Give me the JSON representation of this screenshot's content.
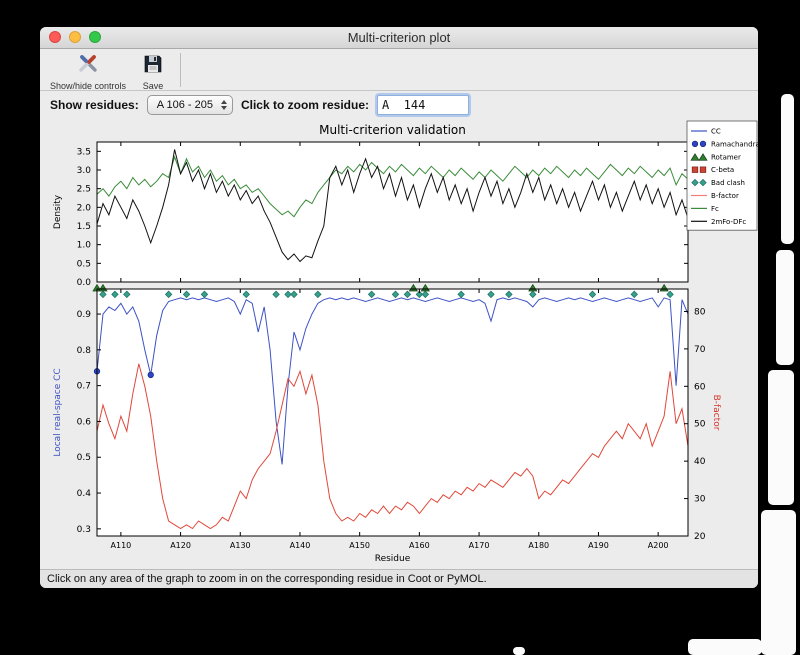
{
  "window": {
    "title": "Multi-criterion plot"
  },
  "toolbar": {
    "items": [
      {
        "label": "Show/hide controls",
        "icon": "tools-icon"
      },
      {
        "label": "Save",
        "icon": "save-icon"
      }
    ]
  },
  "controls": {
    "show_residues_label": "Show residues:",
    "show_residues_value": "A 106 - 205",
    "zoom_label": "Click to zoom residue:",
    "zoom_value": "A  144"
  },
  "status": "Click on any area of the graph to zoom in on the corresponding residue in Coot or PyMOL.",
  "chart_data": {
    "type": "line",
    "title": "Multi-criterion validation",
    "xlabel": "Residue",
    "x_start": 106,
    "x_end": 205,
    "x_ticks": [
      "A110",
      "A120",
      "A130",
      "A140",
      "A150",
      "A160",
      "A170",
      "A180",
      "A190",
      "A200"
    ],
    "x_tick_values": [
      110,
      120,
      130,
      140,
      150,
      160,
      170,
      180,
      190,
      200
    ],
    "top_plot": {
      "ylabel": "Density",
      "ylim": [
        0.0,
        3.75
      ],
      "yticks": [
        0.0,
        0.5,
        1.0,
        1.5,
        2.0,
        2.5,
        3.0,
        3.5
      ],
      "series": [
        {
          "name": "Fc",
          "color": "#3a8c3a",
          "values": [
            2.35,
            2.5,
            2.3,
            2.55,
            2.7,
            2.5,
            2.8,
            2.6,
            2.75,
            2.55,
            2.7,
            2.9,
            2.8,
            3.35,
            2.9,
            3.3,
            2.95,
            3.1,
            2.8,
            3.0,
            2.7,
            2.85,
            2.6,
            2.75,
            2.5,
            2.6,
            2.4,
            2.5,
            2.3,
            2.1,
            1.95,
            1.8,
            1.9,
            1.75,
            2.0,
            2.2,
            2.1,
            2.4,
            2.6,
            2.8,
            3.0,
            2.9,
            3.1,
            2.95,
            3.15,
            3.0,
            3.2,
            3.05,
            2.9,
            3.1,
            2.95,
            3.15,
            3.0,
            2.85,
            3.05,
            2.9,
            3.1,
            2.95,
            2.8,
            3.0,
            2.85,
            3.05,
            2.9,
            2.75,
            2.95,
            2.8,
            3.0,
            2.85,
            2.7,
            2.9,
            3.1,
            2.95,
            2.8,
            3.0,
            2.85,
            3.05,
            2.9,
            3.1,
            2.95,
            2.8,
            3.0,
            2.85,
            3.05,
            2.9,
            2.75,
            2.95,
            3.15,
            3.0,
            2.85,
            3.05,
            2.9,
            3.1,
            2.95,
            2.8,
            3.0,
            2.85,
            3.05,
            2.6,
            2.9,
            2.75
          ]
        },
        {
          "name": "2mFo-DFc",
          "color": "#111111",
          "values": [
            1.55,
            2.1,
            1.8,
            2.3,
            2.0,
            1.7,
            2.2,
            1.9,
            1.5,
            1.05,
            1.5,
            2.0,
            2.6,
            3.55,
            2.9,
            3.2,
            2.7,
            3.0,
            2.5,
            2.9,
            2.4,
            2.7,
            2.3,
            2.6,
            2.2,
            2.45,
            2.1,
            2.3,
            1.9,
            1.6,
            1.2,
            0.8,
            0.6,
            0.75,
            0.55,
            0.7,
            0.65,
            1.1,
            1.5,
            2.8,
            3.1,
            2.6,
            3.0,
            2.4,
            2.9,
            3.3,
            2.8,
            3.1,
            2.5,
            2.9,
            2.3,
            2.8,
            2.2,
            2.6,
            2.0,
            2.5,
            2.9,
            2.4,
            2.8,
            2.2,
            2.6,
            2.1,
            2.5,
            1.9,
            2.4,
            2.8,
            2.3,
            2.7,
            2.1,
            2.5,
            2.0,
            2.4,
            2.9,
            2.4,
            2.8,
            2.2,
            2.6,
            2.1,
            2.5,
            2.0,
            2.4,
            1.9,
            2.3,
            2.7,
            2.2,
            2.6,
            2.0,
            2.4,
            1.9,
            2.3,
            2.7,
            2.2,
            2.6,
            2.1,
            2.5,
            2.0,
            2.4,
            1.8,
            2.2,
            1.7
          ]
        }
      ]
    },
    "bottom_plot": {
      "ylabel_left": "Local real-space CC",
      "ylabel_left_color": "#3d52c4",
      "ylabel_right": "B-factor",
      "ylabel_right_color": "#d4372c",
      "ylim_left": [
        0.28,
        0.97
      ],
      "yticks_left": [
        0.3,
        0.4,
        0.5,
        0.6,
        0.7,
        0.8,
        0.9
      ],
      "ylim_right": [
        20,
        86
      ],
      "yticks_right": [
        20,
        30,
        40,
        50,
        60,
        70,
        80
      ],
      "series": [
        {
          "name": "CC",
          "axis": "left",
          "color": "#3d52c4",
          "values": [
            0.74,
            0.9,
            0.92,
            0.91,
            0.93,
            0.9,
            0.92,
            0.88,
            0.8,
            0.73,
            0.84,
            0.91,
            0.935,
            0.94,
            0.945,
            0.94,
            0.945,
            0.94,
            0.945,
            0.94,
            0.935,
            0.94,
            0.945,
            0.935,
            0.9,
            0.94,
            0.93,
            0.85,
            0.92,
            0.8,
            0.6,
            0.48,
            0.7,
            0.85,
            0.8,
            0.86,
            0.9,
            0.93,
            0.94,
            0.945,
            0.94,
            0.945,
            0.94,
            0.945,
            0.94,
            0.935,
            0.94,
            0.945,
            0.94,
            0.935,
            0.94,
            0.945,
            0.94,
            0.945,
            0.94,
            0.935,
            0.94,
            0.945,
            0.94,
            0.935,
            0.94,
            0.945,
            0.94,
            0.935,
            0.94,
            0.93,
            0.88,
            0.94,
            0.945,
            0.94,
            0.945,
            0.94,
            0.935,
            0.92,
            0.94,
            0.945,
            0.94,
            0.935,
            0.94,
            0.945,
            0.94,
            0.945,
            0.94,
            0.935,
            0.94,
            0.945,
            0.94,
            0.935,
            0.94,
            0.945,
            0.94,
            0.935,
            0.94,
            0.945,
            0.92,
            0.945,
            0.94,
            0.7,
            0.94,
            0.9
          ]
        },
        {
          "name": "B-factor",
          "axis": "right",
          "color": "#e0483a",
          "values": [
            48,
            55,
            50,
            46,
            52,
            48,
            58,
            66,
            60,
            52,
            40,
            30,
            24,
            23,
            22,
            23,
            22,
            24,
            23,
            22,
            23,
            25,
            24,
            28,
            32,
            30,
            35,
            38,
            40,
            42,
            48,
            55,
            62,
            60,
            64,
            58,
            63,
            55,
            40,
            30,
            26,
            24,
            25,
            24,
            26,
            25,
            27,
            26,
            28,
            26,
            28,
            27,
            29,
            28,
            26,
            28,
            30,
            29,
            31,
            30,
            32,
            31,
            33,
            32,
            34,
            33,
            35,
            34,
            33,
            35,
            37,
            36,
            38,
            36,
            30,
            32,
            31,
            33,
            35,
            34,
            36,
            38,
            40,
            42,
            41,
            44,
            46,
            48,
            46,
            50,
            48,
            46,
            50,
            44,
            48,
            52,
            64,
            50,
            54,
            44
          ]
        }
      ],
      "markers": {
        "bad_clash": {
          "shape": "diamond",
          "color": "#35a08d",
          "y_value": 0.955,
          "residues": [
            107,
            109,
            111,
            118,
            121,
            124,
            131,
            136,
            138,
            139,
            143,
            152,
            156,
            158,
            160,
            161,
            167,
            172,
            175,
            179,
            189,
            196,
            202
          ]
        },
        "rotamer": {
          "shape": "triangle",
          "color": "#2e7d2e",
          "residues": [
            106,
            107,
            159,
            161,
            179,
            201
          ]
        },
        "ramachandran": {
          "shape": "circle",
          "color": "#2c46c8",
          "residues": [
            106,
            115
          ]
        }
      }
    },
    "legend": [
      {
        "label": "CC",
        "type": "line",
        "color": "#3d52c4"
      },
      {
        "label": "Ramachandran",
        "type": "circle",
        "color": "#2c46c8"
      },
      {
        "label": "Rotamer",
        "type": "triangle",
        "color": "#2e7d2e"
      },
      {
        "label": "C-beta",
        "type": "square",
        "color": "#cc4436"
      },
      {
        "label": "Bad clash",
        "type": "diamond",
        "color": "#35a08d"
      },
      {
        "label": "B-factor",
        "type": "line",
        "color": "#ef8078"
      },
      {
        "label": "Fc",
        "type": "line",
        "color": "#3a8c3a"
      },
      {
        "label": "2mFo-DFc",
        "type": "line",
        "color": "#111111"
      }
    ]
  }
}
